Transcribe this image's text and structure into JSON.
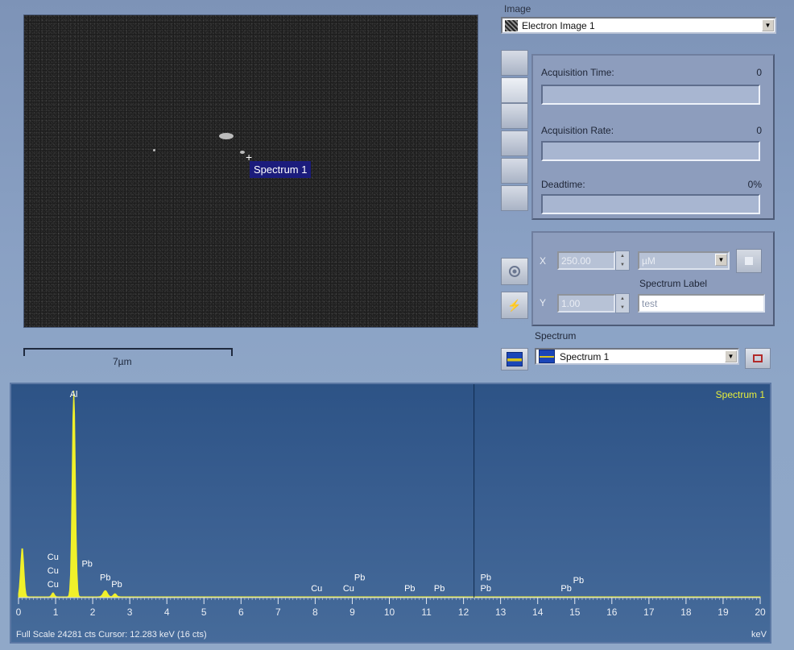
{
  "image_panel": {
    "spectrum_marker_label": "Spectrum 1",
    "scale_bar_label": "7µm"
  },
  "right_panel": {
    "image_caption": "Image",
    "image_select_value": "Electron Image 1",
    "acquisition_time_label": "Acquisition Time:",
    "acquisition_time_value": "0",
    "acquisition_rate_label": "Acquisition Rate:",
    "acquisition_rate_value": "0",
    "deadtime_label": "Deadtime:",
    "deadtime_value": "0%",
    "x_label": "X",
    "x_value": "250.00",
    "y_label": "Y",
    "y_value": "1.00",
    "unit_value": "µM",
    "spectrum_label_caption": "Spectrum Label",
    "spectrum_label_value": "test",
    "spectrum_caption": "Spectrum",
    "spectrum_select_value": "Spectrum 1"
  },
  "chart_data": {
    "type": "line",
    "title": "Spectrum 1",
    "xlabel": "keV",
    "xlim": [
      0,
      20
    ],
    "x_ticks": [
      0,
      1,
      2,
      3,
      4,
      5,
      6,
      7,
      8,
      9,
      10,
      11,
      12,
      13,
      14,
      15,
      16,
      17,
      18,
      19,
      20
    ],
    "cursor_kev": 12.283,
    "full_scale_cts": 24281,
    "footer_text": "Full Scale 24281 cts  Cursor: 12.283 keV (16 cts)",
    "unit_label": "keV",
    "series_color": "#f0f02a",
    "peaks": [
      {
        "kev": 0.1,
        "relative_height": 0.24,
        "width": 0.06
      },
      {
        "kev": 0.93,
        "relative_height": 0.02,
        "width": 0.05
      },
      {
        "kev": 1.49,
        "relative_height": 1.0,
        "width": 0.06
      },
      {
        "kev": 2.34,
        "relative_height": 0.03,
        "width": 0.08
      },
      {
        "kev": 2.6,
        "relative_height": 0.015,
        "width": 0.06
      }
    ],
    "element_labels": [
      {
        "text": "Al",
        "kev": 1.49,
        "row": 0
      },
      {
        "text": "Cu",
        "kev": 0.93,
        "row": 1
      },
      {
        "text": "Cu",
        "kev": 0.93,
        "row": 2
      },
      {
        "text": "Cu",
        "kev": 0.93,
        "row": 3
      },
      {
        "text": "Pb",
        "kev": 1.85,
        "row": 1.5
      },
      {
        "text": "Pb",
        "kev": 2.34,
        "row": 2.5
      },
      {
        "text": "Pb",
        "kev": 2.65,
        "row": 3
      },
      {
        "text": "Cu",
        "kev": 8.04,
        "row": 3.3
      },
      {
        "text": "Cu",
        "kev": 8.9,
        "row": 3.3
      },
      {
        "text": "Pb",
        "kev": 9.2,
        "row": 2.5
      },
      {
        "text": "Pb",
        "kev": 10.55,
        "row": 3.3
      },
      {
        "text": "Pb",
        "kev": 11.35,
        "row": 3.3
      },
      {
        "text": "Pb",
        "kev": 12.6,
        "row": 2.5
      },
      {
        "text": "Pb",
        "kev": 12.6,
        "row": 3.3
      },
      {
        "text": "Pb",
        "kev": 14.77,
        "row": 3.3
      },
      {
        "text": "Pb",
        "kev": 15.1,
        "row": 2.7
      }
    ]
  }
}
